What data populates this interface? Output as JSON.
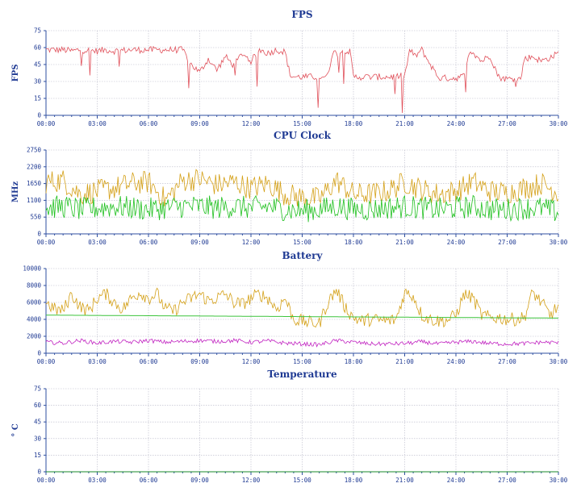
{
  "chart_data": [
    {
      "type": "line",
      "title": "FPS",
      "ylabel": "FPS",
      "yticks": [
        0,
        15,
        30,
        45,
        60,
        75
      ],
      "ylim": [
        0,
        75
      ],
      "xlim": [
        0,
        30
      ],
      "xticks": [
        "00:00",
        "03:00",
        "06:00",
        "09:00",
        "12:00",
        "15:00",
        "18:00",
        "21:00",
        "24:00",
        "27:00",
        "30:00"
      ],
      "grid": true,
      "series": [
        {
          "color": "#e0505a",
          "x": [
            0,
            1,
            1.5,
            2,
            3,
            3.5,
            4,
            5,
            6,
            7,
            8,
            8.5,
            9,
            9.5,
            10,
            10.5,
            11,
            11.5,
            12,
            12.5,
            13,
            13.5,
            14,
            14.3,
            14.6,
            15,
            16,
            16.5,
            16.8,
            17,
            17.5,
            17.8,
            18,
            19,
            20,
            21,
            21.3,
            21.6,
            22,
            22.5,
            23,
            24,
            24.5,
            24.8,
            25,
            25.5,
            26,
            26.5,
            27,
            27.5,
            27.8,
            28,
            28.5,
            29,
            29.5,
            30
          ],
          "y": [
            58,
            58,
            57,
            58,
            57,
            58,
            57,
            58,
            58,
            58,
            58,
            45,
            38,
            50,
            40,
            52,
            44,
            55,
            48,
            58,
            55,
            58,
            56,
            35,
            34,
            34,
            34,
            35,
            58,
            54,
            58,
            56,
            34,
            34,
            34,
            35,
            58,
            52,
            58,
            45,
            33,
            33,
            35,
            58,
            56,
            48,
            53,
            34,
            32,
            33,
            32,
            50,
            52,
            48,
            51,
            55
          ]
        }
      ]
    },
    {
      "type": "line",
      "title": "CPU Clock",
      "ylabel": "MHz",
      "yticks": [
        0,
        550,
        1100,
        1650,
        2200,
        2750
      ],
      "ylim": [
        0,
        2750
      ],
      "xlim": [
        0,
        30
      ],
      "xticks": [
        "00:00",
        "03:00",
        "06:00",
        "09:00",
        "12:00",
        "15:00",
        "18:00",
        "21:00",
        "24:00",
        "27:00",
        "30:00"
      ],
      "grid": true,
      "series": [
        {
          "color": "#d4a017",
          "x": [
            0,
            1,
            2,
            3,
            4,
            5,
            6,
            7,
            8,
            9,
            10,
            11,
            12,
            13,
            14,
            15,
            16,
            17,
            18,
            19,
            20,
            21,
            22,
            23,
            24,
            25,
            26,
            27,
            28,
            29,
            30
          ],
          "y": [
            1700,
            1750,
            1300,
            1400,
            1500,
            1650,
            1700,
            1100,
            1750,
            1800,
            1600,
            1700,
            1500,
            1650,
            1300,
            1200,
            1150,
            1750,
            1300,
            1300,
            1400,
            1700,
            1450,
            1300,
            1400,
            1700,
            1400,
            1350,
            1500,
            1650,
            1350
          ]
        },
        {
          "color": "#1fc01f",
          "x": [
            0,
            1,
            2,
            3,
            4,
            5,
            6,
            7,
            8,
            9,
            10,
            11,
            12,
            13,
            14,
            15,
            16,
            17,
            18,
            19,
            20,
            21,
            22,
            23,
            24,
            25,
            26,
            27,
            28,
            29,
            30
          ],
          "y": [
            850,
            900,
            800,
            850,
            900,
            850,
            800,
            850,
            900,
            900,
            850,
            900,
            850,
            900,
            800,
            750,
            800,
            900,
            800,
            800,
            850,
            900,
            850,
            800,
            850,
            900,
            800,
            800,
            850,
            850,
            700
          ]
        }
      ]
    },
    {
      "type": "line",
      "title": "Battery",
      "ylabel": "",
      "yticks": [
        0,
        2000,
        4000,
        6000,
        8000,
        10000
      ],
      "ylim": [
        0,
        10000
      ],
      "xlim": [
        0,
        30
      ],
      "xticks": [
        "00:00",
        "03:00",
        "06:00",
        "09:00",
        "12:00",
        "15:00",
        "18:00",
        "21:00",
        "24:00",
        "27:00",
        "30:00"
      ],
      "grid": true,
      "series": [
        {
          "color": "#d4a017",
          "x": [
            0,
            0.5,
            1,
            1.5,
            2,
            2.5,
            3,
            3.5,
            4,
            4.5,
            5,
            5.5,
            6,
            6.5,
            7,
            7.5,
            8,
            8.5,
            9,
            9.5,
            10,
            10.5,
            11,
            11.5,
            12,
            12.5,
            13,
            13.5,
            14,
            14.5,
            15,
            15.5,
            16,
            16.5,
            17,
            17.5,
            18,
            18.5,
            19,
            19.5,
            20,
            20.5,
            21,
            21.5,
            22,
            22.5,
            23,
            23.5,
            24,
            24.5,
            25,
            25.5,
            26,
            26.5,
            27,
            27.5,
            28,
            28.5,
            29,
            29.5,
            30
          ],
          "y": [
            6000,
            5200,
            5000,
            7000,
            5500,
            5000,
            6500,
            7000,
            6000,
            5200,
            6500,
            7200,
            6500,
            7000,
            5200,
            5000,
            6000,
            6500,
            7000,
            6200,
            6500,
            7000,
            6000,
            5800,
            6500,
            7000,
            6500,
            5200,
            6500,
            4000,
            3800,
            3600,
            3500,
            6000,
            7500,
            5500,
            4200,
            3800,
            4000,
            3900,
            3800,
            4000,
            7200,
            6800,
            4500,
            4000,
            3800,
            3900,
            4500,
            7000,
            6500,
            4500,
            4200,
            4200,
            4000,
            4000,
            4200,
            7200,
            6000,
            4500,
            5500
          ]
        },
        {
          "color": "#3cc43c",
          "x": [
            0,
            30
          ],
          "y": [
            4500,
            4150
          ]
        },
        {
          "color": "#c020c0",
          "x": [
            0,
            1,
            2,
            3,
            4,
            5,
            6,
            7,
            8,
            9,
            10,
            11,
            12,
            13,
            14,
            15,
            16,
            17,
            18,
            19,
            20,
            21,
            22,
            23,
            24,
            25,
            26,
            27,
            28,
            29,
            30
          ],
          "y": [
            1300,
            1200,
            1500,
            1200,
            1400,
            1300,
            1500,
            1300,
            1400,
            1500,
            1400,
            1500,
            1300,
            1450,
            1200,
            1100,
            1000,
            1500,
            1300,
            1100,
            1100,
            1150,
            1350,
            1100,
            1300,
            1400,
            1150,
            1100,
            1150,
            1300,
            1250
          ]
        }
      ]
    },
    {
      "type": "line",
      "title": "Temperature",
      "ylabel": "° C",
      "yticks": [
        0,
        15,
        30,
        45,
        60,
        75
      ],
      "ylim": [
        0,
        75
      ],
      "xlim": [
        0,
        30
      ],
      "xticks": [
        "00:00",
        "03:00",
        "06:00",
        "09:00",
        "12:00",
        "15:00",
        "18:00",
        "21:00",
        "24:00",
        "27:00",
        "30:00"
      ],
      "grid": true,
      "series": [
        {
          "color": "#1a8a2a",
          "x": [
            0,
            30
          ],
          "y": [
            0,
            0
          ]
        }
      ]
    }
  ]
}
